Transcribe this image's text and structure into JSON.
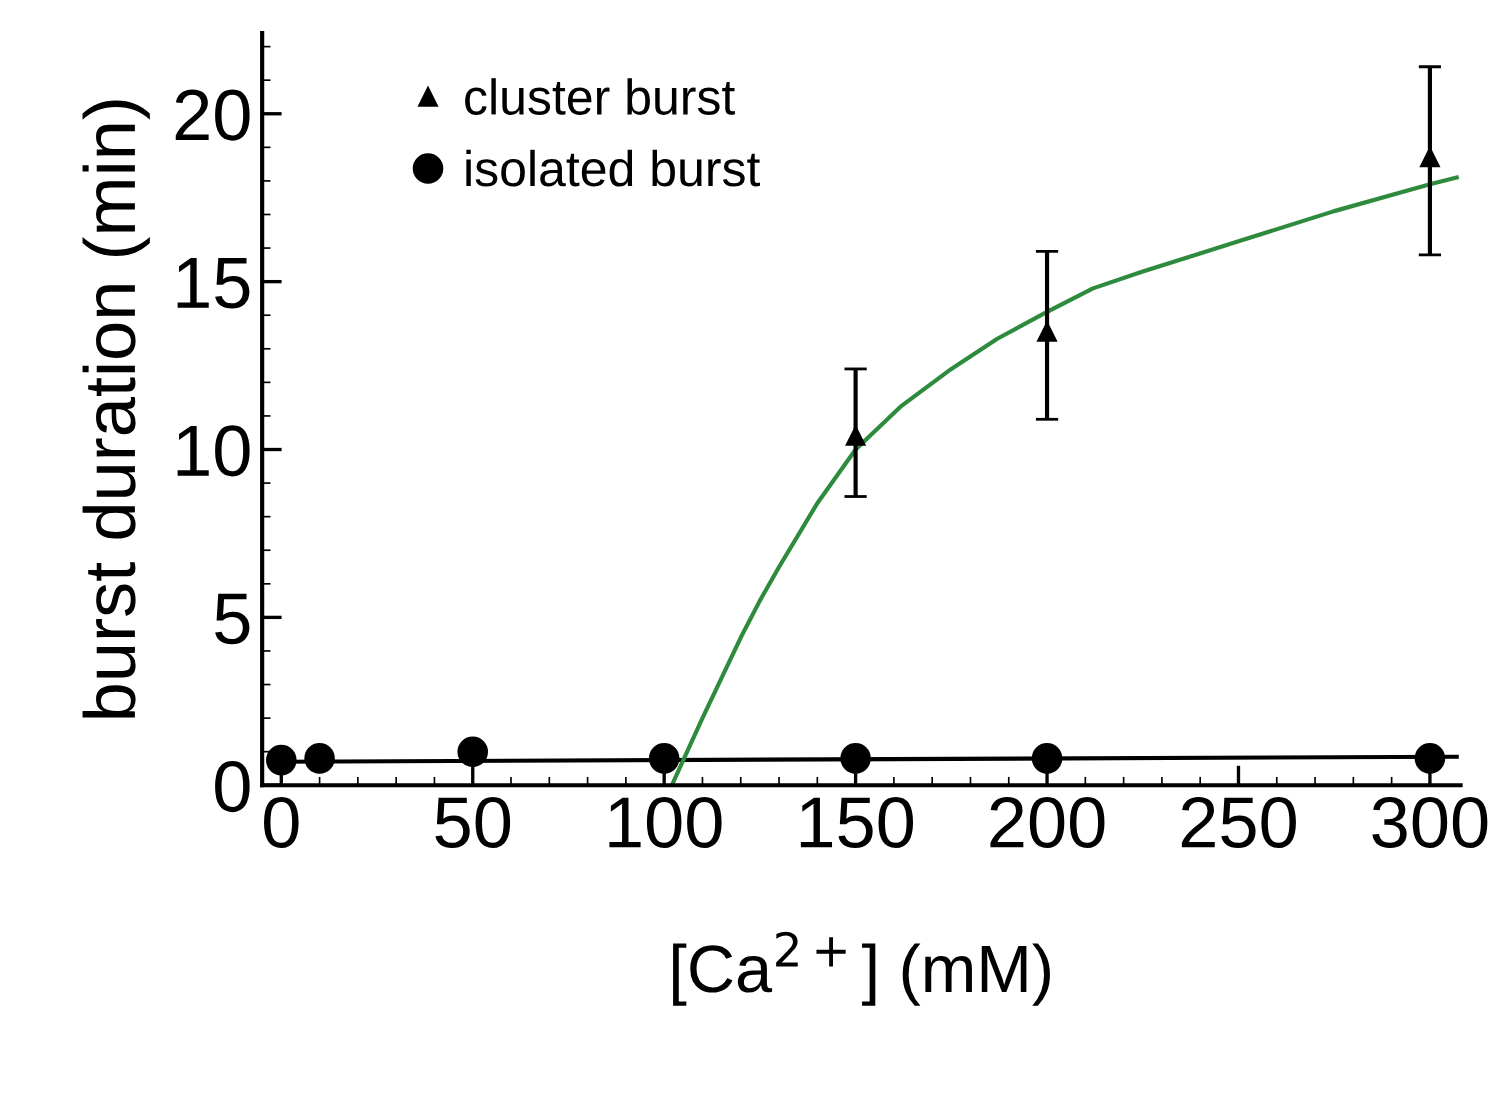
{
  "chart_data": {
    "type": "scatter",
    "xlabel": "[Ca$^{2+}$] (mM)",
    "ylabel": "burst duration (min)",
    "xlim": [
      -5,
      308
    ],
    "ylim": [
      0,
      22.4
    ],
    "xticks": [
      0,
      50,
      100,
      150,
      200,
      250,
      300
    ],
    "yticks": [
      0,
      5,
      10,
      15,
      20
    ],
    "grid": false,
    "legend": "top left",
    "series": [
      {
        "name": "cluster burst",
        "marker": "triangle",
        "color": "#000000",
        "x": [
          150,
          200,
          300
        ],
        "values": [
          10.4,
          13.5,
          18.7
        ],
        "errors": [
          [
            8.6,
            12.4
          ],
          [
            10.9,
            15.9
          ],
          [
            15.8,
            21.4
          ]
        ]
      },
      {
        "name": "isolated burst",
        "marker": "circle",
        "color": "#000000",
        "x": [
          0,
          10,
          50,
          100,
          150,
          200,
          300
        ],
        "values": [
          0.75,
          0.8,
          1.0,
          0.8,
          0.8,
          0.8,
          0.8
        ]
      },
      {
        "type": "line",
        "marker": "none",
        "color": "#000000",
        "x": [
          0,
          307
        ],
        "values": [
          0.7,
          0.85
        ]
      },
      {
        "type": "line",
        "marker": "none",
        "color": "#2e8b3e",
        "x": [
          102,
          106,
          110,
          115,
          120,
          125,
          130,
          140,
          150,
          162,
          175,
          187,
          200,
          212,
          225,
          250,
          275,
          300,
          307
        ],
        "values": [
          0,
          1.0,
          2.0,
          3.2,
          4.4,
          5.5,
          6.5,
          8.4,
          10.0,
          11.3,
          12.4,
          13.3,
          14.1,
          14.8,
          15.3,
          16.2,
          17.1,
          17.9,
          18.1
        ]
      }
    ]
  }
}
